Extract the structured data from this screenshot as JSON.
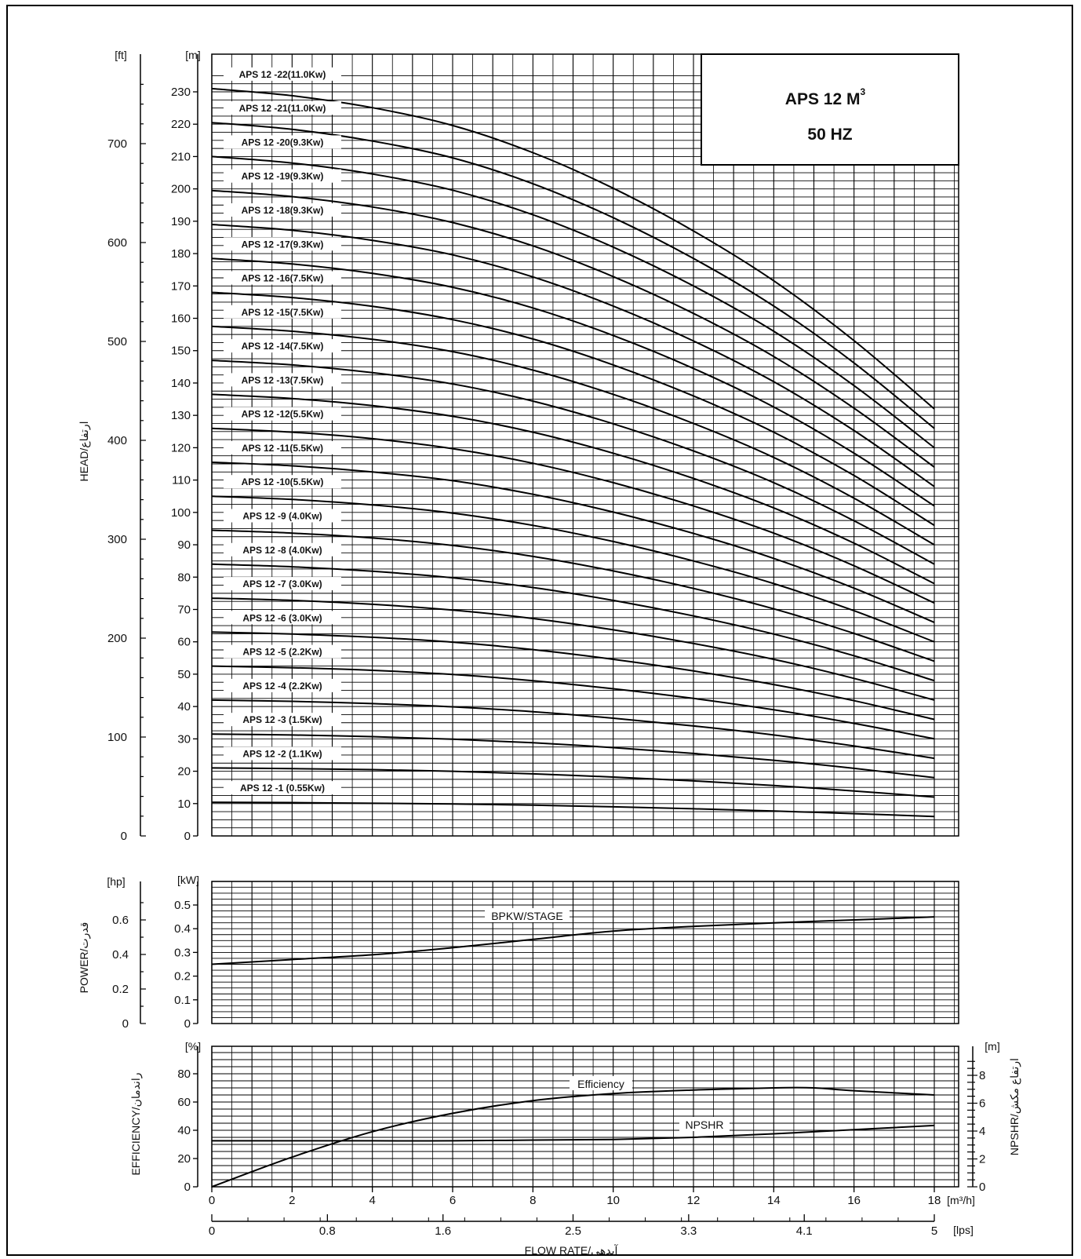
{
  "chart_data": [
    {
      "type": "line",
      "title": "APS 12 M",
      "title_superscript": "3",
      "subtitle": "50 HZ",
      "ylabel": "HEAD/ارتفاع",
      "y_unit": "[m]",
      "y2_unit": "[ft]",
      "ylim": [
        0,
        235
      ],
      "y2lim": [
        0,
        771
      ],
      "y_ticks": [
        0,
        10,
        20,
        30,
        40,
        50,
        60,
        70,
        80,
        90,
        100,
        110,
        120,
        130,
        140,
        150,
        160,
        170,
        180,
        190,
        200,
        210,
        220,
        230
      ],
      "y2_ticks": [
        0,
        100,
        200,
        300,
        400,
        500,
        600,
        700
      ],
      "xlim": [
        0,
        18.6
      ],
      "grid": true,
      "series": [
        {
          "name": "APS 12 -1 (0.55Kw)",
          "shut_off": 10.4,
          "x": [
            0,
            2,
            4,
            6,
            8,
            10,
            12,
            14,
            16,
            18
          ],
          "y": [
            10.4,
            10.3,
            10.1,
            9.9,
            9.5,
            9.0,
            8.4,
            7.7,
            6.9,
            6.0
          ]
        },
        {
          "name": "APS 12 -2 (1.1Kw)",
          "shut_off": 21.0,
          "x": [
            0,
            2,
            4,
            6,
            8,
            10,
            12,
            14,
            16,
            18
          ],
          "y": [
            21.0,
            20.8,
            20.5,
            20.0,
            19.2,
            18.2,
            17.0,
            15.6,
            13.9,
            12.0
          ]
        },
        {
          "name": "APS 12 -3 (1.5Kw)",
          "shut_off": 31.5,
          "x": [
            0,
            2,
            4,
            6,
            8,
            10,
            12,
            14,
            16,
            18
          ],
          "y": [
            31.5,
            31.2,
            30.7,
            29.9,
            28.8,
            27.3,
            25.5,
            23.4,
            20.9,
            18.0
          ]
        },
        {
          "name": "APS 12 -4 (2.2Kw)",
          "shut_off": 42.0,
          "x": [
            0,
            2,
            4,
            6,
            8,
            10,
            12,
            14,
            16,
            18
          ],
          "y": [
            42.0,
            41.6,
            40.9,
            39.9,
            38.4,
            36.4,
            34.0,
            31.2,
            27.8,
            24.0
          ]
        },
        {
          "name": "APS 12 -5 (2.2Kw)",
          "shut_off": 52.5,
          "x": [
            0,
            2,
            4,
            6,
            8,
            10,
            12,
            14,
            16,
            18
          ],
          "y": [
            52.5,
            52.0,
            51.2,
            49.9,
            48.0,
            45.5,
            42.5,
            39.0,
            34.8,
            30.0
          ]
        },
        {
          "name": "APS 12 -6 (3.0Kw)",
          "shut_off": 63.0,
          "x": [
            0,
            2,
            4,
            6,
            8,
            10,
            12,
            14,
            16,
            18
          ],
          "y": [
            63.0,
            62.4,
            61.4,
            59.9,
            57.6,
            54.6,
            51.0,
            46.8,
            41.8,
            36.0
          ]
        },
        {
          "name": "APS 12 -7 (3.0Kw)",
          "shut_off": 73.5,
          "x": [
            0,
            2,
            4,
            6,
            8,
            10,
            12,
            14,
            16,
            18
          ],
          "y": [
            73.5,
            72.8,
            71.6,
            69.8,
            67.2,
            63.7,
            59.5,
            54.6,
            48.7,
            42.0
          ]
        },
        {
          "name": "APS 12 -8 (4.0Kw)",
          "shut_off": 84.0,
          "x": [
            0,
            2,
            4,
            6,
            8,
            10,
            12,
            14,
            16,
            18
          ],
          "y": [
            84.0,
            83.2,
            81.8,
            79.8,
            76.8,
            72.8,
            68.0,
            62.4,
            55.7,
            48.0
          ]
        },
        {
          "name": "APS 12 -9 (4.0Kw)",
          "shut_off": 94.5,
          "x": [
            0,
            2,
            4,
            6,
            8,
            10,
            12,
            14,
            16,
            18
          ],
          "y": [
            94.5,
            93.6,
            92.1,
            89.8,
            86.4,
            81.9,
            76.5,
            70.2,
            62.6,
            54.0
          ]
        },
        {
          "name": "APS 12 -10(5.5Kw)",
          "shut_off": 105.0,
          "x": [
            0,
            2,
            4,
            6,
            8,
            10,
            12,
            14,
            16,
            18
          ],
          "y": [
            105.0,
            104.0,
            102.3,
            99.8,
            96.0,
            91.0,
            85.0,
            78.0,
            69.6,
            60.0
          ]
        },
        {
          "name": "APS 12 -11(5.5Kw)",
          "shut_off": 115.5,
          "x": [
            0,
            2,
            4,
            6,
            8,
            10,
            12,
            14,
            16,
            18
          ],
          "y": [
            115.5,
            114.4,
            112.5,
            109.8,
            105.6,
            100.1,
            93.5,
            85.8,
            76.6,
            66.0
          ]
        },
        {
          "name": "APS 12 -12(5.5Kw)",
          "shut_off": 126.0,
          "x": [
            0,
            2,
            4,
            6,
            8,
            10,
            12,
            14,
            16,
            18
          ],
          "y": [
            126.0,
            124.8,
            122.8,
            119.7,
            115.2,
            109.2,
            102.0,
            93.6,
            83.5,
            72.0
          ]
        },
        {
          "name": "APS 12 -13(7.5Kw)",
          "shut_off": 136.5,
          "x": [
            0,
            2,
            4,
            6,
            8,
            10,
            12,
            14,
            16,
            18
          ],
          "y": [
            136.5,
            135.2,
            133.0,
            129.7,
            124.8,
            118.3,
            110.5,
            101.4,
            90.5,
            78.0
          ]
        },
        {
          "name": "APS 12 -14(7.5Kw)",
          "shut_off": 147.0,
          "x": [
            0,
            2,
            4,
            6,
            8,
            10,
            12,
            14,
            16,
            18
          ],
          "y": [
            147.0,
            145.6,
            143.2,
            139.7,
            134.4,
            127.4,
            119.0,
            109.2,
            97.4,
            84.0
          ]
        },
        {
          "name": "APS 12 -15(7.5Kw)",
          "shut_off": 157.5,
          "x": [
            0,
            2,
            4,
            6,
            8,
            10,
            12,
            14,
            16,
            18
          ],
          "y": [
            157.5,
            156.0,
            153.5,
            149.7,
            144.0,
            136.5,
            127.5,
            117.0,
            104.4,
            90.0
          ]
        },
        {
          "name": "APS 12 -16(7.5Kw)",
          "shut_off": 168.0,
          "x": [
            0,
            2,
            4,
            6,
            8,
            10,
            12,
            14,
            16,
            18
          ],
          "y": [
            168.0,
            166.4,
            163.7,
            159.6,
            153.6,
            145.6,
            136.0,
            124.8,
            111.4,
            96.0
          ]
        },
        {
          "name": "APS 12 -17(9.3Kw)",
          "shut_off": 178.5,
          "x": [
            0,
            2,
            4,
            6,
            8,
            10,
            12,
            14,
            16,
            18
          ],
          "y": [
            178.5,
            176.8,
            173.9,
            169.6,
            163.2,
            154.7,
            144.5,
            132.6,
            118.3,
            102.0
          ]
        },
        {
          "name": "APS 12 -18(9.3Kw)",
          "shut_off": 189.0,
          "x": [
            0,
            2,
            4,
            6,
            8,
            10,
            12,
            14,
            16,
            18
          ],
          "y": [
            189.0,
            187.2,
            184.1,
            179.6,
            172.8,
            163.8,
            153.0,
            140.4,
            125.3,
            108.0
          ]
        },
        {
          "name": "APS 12 -19(9.3Kw)",
          "shut_off": 199.5,
          "x": [
            0,
            2,
            4,
            6,
            8,
            10,
            12,
            14,
            16,
            18
          ],
          "y": [
            199.5,
            197.6,
            194.4,
            189.6,
            182.4,
            172.9,
            161.5,
            148.2,
            132.2,
            114.0
          ]
        },
        {
          "name": "APS 12 -20(9.3Kw)",
          "shut_off": 210.0,
          "x": [
            0,
            2,
            4,
            6,
            8,
            10,
            12,
            14,
            16,
            18
          ],
          "y": [
            210.0,
            208.0,
            204.6,
            199.6,
            192.0,
            182.0,
            170.0,
            156.0,
            139.2,
            120.0
          ]
        },
        {
          "name": "APS 12 -21(11.0Kw)",
          "shut_off": 220.5,
          "x": [
            0,
            2,
            4,
            6,
            8,
            10,
            12,
            14,
            16,
            18
          ],
          "y": [
            220.5,
            218.4,
            214.8,
            209.6,
            201.6,
            191.1,
            178.5,
            163.8,
            146.2,
            126.0
          ]
        },
        {
          "name": "APS 12 -22(11.0Kw)",
          "shut_off": 231.0,
          "x": [
            0,
            2,
            4,
            6,
            8,
            10,
            12,
            14,
            16,
            18
          ],
          "y": [
            231.0,
            228.8,
            225.1,
            219.6,
            211.2,
            200.2,
            187.0,
            171.6,
            153.1,
            132.0
          ]
        }
      ]
    },
    {
      "type": "line",
      "ylabel": "POWER/قدرت",
      "y_unit": "[kW]",
      "y2_unit": "[hp]",
      "ylim": [
        0,
        0.6
      ],
      "y_ticks": [
        0,
        0.1,
        0.2,
        0.3,
        0.4,
        0.5
      ],
      "y2_ticks": [
        0,
        0.2,
        0.4,
        0.6
      ],
      "xlim": [
        0,
        18.6
      ],
      "grid": true,
      "series": [
        {
          "name": "BPKW/STAGE",
          "x": [
            0,
            2,
            4,
            6,
            8,
            10,
            12,
            14,
            16,
            18
          ],
          "y": [
            0.25,
            0.27,
            0.29,
            0.32,
            0.355,
            0.39,
            0.41,
            0.425,
            0.437,
            0.45
          ]
        }
      ]
    },
    {
      "type": "line",
      "ylabel": "EFFICIENCY/راندمان",
      "y_unit": "[%]",
      "y2label": "NPSHR/ارتفاع مکش",
      "y2_unit": "[m]",
      "ylim": [
        0,
        100
      ],
      "y_ticks": [
        0,
        20,
        40,
        60,
        80
      ],
      "y2lim": [
        0,
        10
      ],
      "y2_ticks": [
        0,
        2,
        4,
        6,
        8
      ],
      "xlim": [
        0,
        18.6
      ],
      "xlabel": "FLOW RATE/آبدهی",
      "x_unit": "[m³/h]",
      "x_ticks": [
        0,
        2,
        4,
        6,
        8,
        10,
        12,
        14,
        16,
        18
      ],
      "x2_unit": "[lps]",
      "x2_ticks": [
        "0",
        "0.8",
        "1.6",
        "2.5",
        "3.3",
        "4.1",
        "5"
      ],
      "grid": true,
      "series": [
        {
          "name": "Efficiency",
          "axis": "left",
          "x": [
            0,
            2,
            4,
            6,
            8,
            10,
            12,
            14,
            15,
            16,
            18
          ],
          "y": [
            0,
            21,
            39,
            52,
            61,
            66,
            68.5,
            70,
            70,
            68,
            65
          ]
        },
        {
          "name": "NPSHR",
          "axis": "right",
          "x": [
            0,
            2,
            4,
            6,
            8,
            10,
            12,
            14,
            16,
            18
          ],
          "y": [
            3.3,
            3.3,
            3.3,
            3.3,
            3.35,
            3.4,
            3.55,
            3.8,
            4.1,
            4.4
          ]
        }
      ]
    }
  ]
}
